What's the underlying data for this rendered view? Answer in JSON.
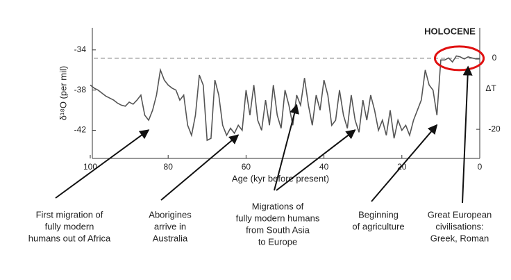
{
  "chart_data": {
    "type": "line",
    "x_label": "Age (kyr before present)",
    "y_label": "δ¹⁸O (per mil)",
    "y2_label": "ΔT",
    "xlim": [
      100,
      0
    ],
    "xticks": [
      100,
      80,
      60,
      40,
      20,
      0
    ],
    "ylim": [
      -44.8,
      -31.8
    ],
    "yticks": [
      -34,
      -38,
      -42
    ],
    "y2lim": [
      -28.2,
      8.6
    ],
    "y2ticks": [
      0,
      -20
    ],
    "reference_line": {
      "axis": "y2",
      "value": 0,
      "style": "dashed",
      "color": "#777"
    },
    "highlight": {
      "label": "HOLOCENE",
      "x": [
        11.5,
        -1
      ],
      "color": "#e01010"
    },
    "series": [
      {
        "color": "#555",
        "x": [
          100,
          99,
          98,
          97,
          96,
          95,
          94,
          93,
          92,
          91,
          90,
          89,
          88,
          87,
          86,
          85,
          84,
          83,
          82,
          81,
          80,
          79,
          78,
          77,
          76,
          75,
          74,
          73,
          72,
          71,
          70,
          69,
          68,
          67,
          66,
          65,
          64,
          63,
          62,
          61,
          60,
          59,
          58,
          57,
          56,
          55,
          54,
          53,
          52,
          51,
          50,
          49,
          48,
          47,
          46,
          45,
          44,
          43,
          42,
          41,
          40,
          39,
          38,
          37,
          36,
          35,
          34,
          33,
          32,
          31,
          30,
          29,
          28,
          27,
          26,
          25,
          24,
          23,
          22,
          21,
          20,
          19,
          18,
          17,
          16,
          15,
          14,
          13,
          12,
          11,
          10,
          9,
          8,
          7,
          6,
          5,
          4,
          3,
          2,
          1,
          0
        ],
        "values": [
          -37.5,
          -37.8,
          -38.0,
          -38.3,
          -38.6,
          -38.8,
          -39.0,
          -39.3,
          -39.5,
          -39.6,
          -39.2,
          -39.4,
          -39.0,
          -38.5,
          -40.5,
          -41.0,
          -40.0,
          -38.5,
          -36.0,
          -37.0,
          -37.5,
          -37.8,
          -38.0,
          -39.0,
          -38.5,
          -41.5,
          -42.5,
          -40.5,
          -36.5,
          -37.5,
          -43.0,
          -42.8,
          -37.0,
          -38.5,
          -41.5,
          -42.5,
          -41.8,
          -42.3,
          -41.5,
          -42.0,
          -38.0,
          -40.5,
          -37.5,
          -41.0,
          -42.0,
          -39.0,
          -41.5,
          -37.5,
          -40.5,
          -41.8,
          -38.0,
          -39.5,
          -41.5,
          -38.5,
          -39.5,
          -36.8,
          -39.5,
          -41.5,
          -38.5,
          -40.0,
          -37.0,
          -38.5,
          -41.5,
          -41.0,
          -38.0,
          -40.5,
          -41.8,
          -38.5,
          -41.0,
          -42.2,
          -39.0,
          -41.0,
          -38.5,
          -40.0,
          -42.0,
          -41.0,
          -42.5,
          -40.0,
          -42.8,
          -41.0,
          -42.0,
          -41.5,
          -42.5,
          -41.0,
          -40.0,
          -39.0,
          -36.0,
          -37.5,
          -38.0,
          -40.5,
          -35.0,
          -35.0,
          -34.8,
          -35.2,
          -34.6,
          -34.7,
          -34.9,
          -34.7,
          -34.8,
          -34.9,
          -34.9
        ]
      }
    ],
    "annotations": [
      {
        "text": [
          "First migration of",
          "fully modern",
          "humans out of Africa"
        ],
        "x": [
          85
        ]
      },
      {
        "text": [
          "Aborigines",
          "arrive in",
          "Australia"
        ],
        "x": [
          62
        ]
      },
      {
        "text": [
          "Migrations of",
          "fully modern humans",
          "from South Asia",
          "to Europe"
        ],
        "x": [
          47,
          32
        ]
      },
      {
        "text": [
          "Beginning",
          "of agriculture"
        ],
        "x": [
          11
        ]
      },
      {
        "text": [
          "Great European",
          "civilisations:",
          "Greek, Roman"
        ],
        "x": [
          3
        ]
      }
    ]
  }
}
